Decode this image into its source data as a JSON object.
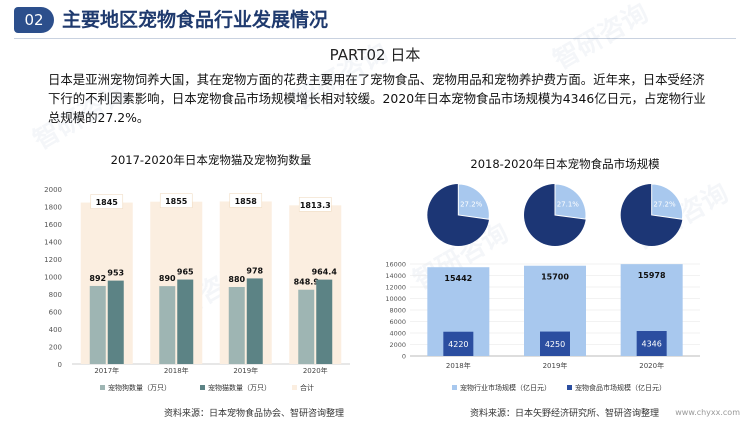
{
  "header": {
    "badge": "02",
    "title": "主要地区宠物食品行业发展情况",
    "subtitle": "PART02   日本"
  },
  "paragraph": "日本是亚洲宠物饲养大国，其在宠物方面的花费主要用在了宠物食品、宠物用品和宠物养护费方面。近年来，日本受经济下行的不利因素影响，日本宠物食品市场规模增长相对较缓。2020年日本宠物食品市场规模为4346亿日元，占宠物行业总规模的27.2%。",
  "watermark": "智研咨询",
  "colors": {
    "brand": "#2c4f8c",
    "dog": "#9eb5b3",
    "cat": "#5c8385",
    "total": "#fbeee0",
    "industry": "#a8c8ee",
    "food": "#2b4ea0",
    "pie_dark": "#1c3675",
    "pie_light": "#a8c8ee"
  },
  "chart_data": [
    {
      "type": "bar",
      "title": "2017-2020年日本宠物猫及宠物狗数量",
      "categories": [
        "2017年",
        "2018年",
        "2019年",
        "2020年"
      ],
      "ylim": [
        0,
        2000
      ],
      "yticks": [
        0,
        200,
        400,
        600,
        800,
        1000,
        1200,
        1400,
        1600,
        1800,
        2000
      ],
      "series": [
        {
          "name": "宠物狗数量（万只）",
          "values": [
            892,
            890,
            880,
            848.9
          ],
          "labels": [
            "892",
            "890",
            "880",
            "848.9"
          ]
        },
        {
          "name": "宠物猫数量（万只）",
          "values": [
            953,
            965,
            978,
            964.4
          ],
          "labels": [
            "953",
            "965",
            "978",
            "964.4"
          ]
        },
        {
          "name": "合计",
          "values": [
            1845,
            1855,
            1858,
            1813.3
          ],
          "labels": [
            "1845",
            "1855",
            "1858",
            "1813.3"
          ]
        }
      ],
      "source": "资料来源：日本宠物食品协会、智研咨询整理"
    },
    {
      "type": "bar",
      "title": "2018-2020年日本宠物食品市场规模",
      "categories": [
        "2018年",
        "2019年",
        "2020年"
      ],
      "ylim": [
        0,
        16000
      ],
      "yticks": [
        0,
        2000,
        4000,
        6000,
        8000,
        10000,
        12000,
        14000,
        16000
      ],
      "series": [
        {
          "name": "宠物行业市场规模（亿日元）",
          "values": [
            15442,
            15700,
            15978
          ],
          "labels": [
            "15442",
            "15700",
            "15978"
          ]
        },
        {
          "name": "宠物食品市场规模（亿日元）",
          "values": [
            4220,
            4250,
            4346
          ],
          "labels": [
            "4220",
            "4250",
            "4346"
          ]
        }
      ],
      "pies": [
        {
          "category": "2018年",
          "share": 27.2,
          "label": "27.2%"
        },
        {
          "category": "2019年",
          "share": 27.1,
          "label": "27.1%"
        },
        {
          "category": "2020年",
          "share": 27.2,
          "label": "27.2%"
        }
      ],
      "source": "资料来源：日本矢野经济研究所、智研咨询整理"
    }
  ],
  "footer_url": "www.chyxx.com"
}
